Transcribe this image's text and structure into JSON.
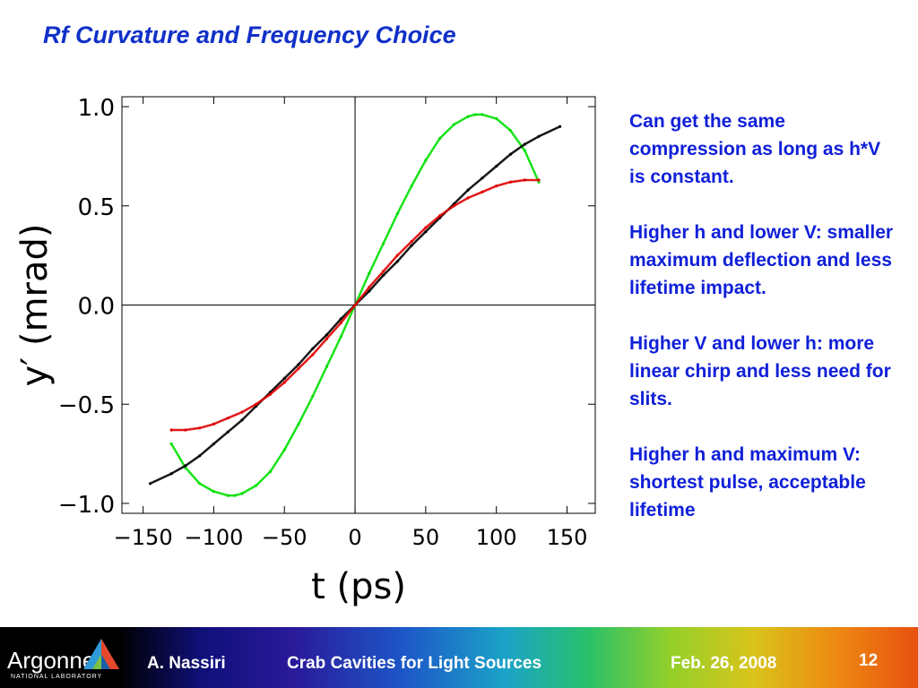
{
  "slide": {
    "title": "Rf Curvature and Frequency Choice",
    "notes": [
      "Can get the same compression as long as h*V is constant.",
      "Higher h and lower V: smaller maximum deflection and less lifetime impact.",
      "Higher V and lower h: more linear chirp and less need for slits.",
      "Higher h and maximum V: shortest pulse, acceptable lifetime"
    ]
  },
  "footer": {
    "logo_text": "Argonne",
    "logo_subtext": "NATIONAL LABORATORY",
    "author": "A. Nassiri",
    "talk_title": "Crab Cavities for Light Sources",
    "date": "Feb. 26, 2008",
    "page_number": "12",
    "logo_icon": "argonne-triangle-logo-icon"
  },
  "chart_data": {
    "type": "scatter",
    "title": "",
    "xlabel": "t (ps)",
    "ylabel": "y′ (mrad)",
    "xlim": [
      -165,
      170
    ],
    "ylim": [
      -1.05,
      1.05
    ],
    "xticks": [
      -150,
      -100,
      -50,
      0,
      50,
      100,
      150
    ],
    "xtick_labels": [
      "−150",
      "−100",
      "−50",
      "0",
      "50",
      "100",
      "150"
    ],
    "yticks": [
      1.0,
      0.5,
      0.0,
      -0.5,
      -1.0
    ],
    "ytick_labels": [
      "1.0",
      "0.5",
      "0.0",
      "−0.5",
      "−1.0"
    ],
    "grid": false,
    "legend": "none",
    "series": [
      {
        "color": "#00e000",
        "x": [
          -130,
          -120,
          -110,
          -100,
          -90,
          -85,
          -80,
          -70,
          -60,
          -50,
          -40,
          -30,
          -20,
          -10,
          0,
          10,
          20,
          30,
          40,
          50,
          60,
          70,
          80,
          85,
          90,
          100,
          110,
          120,
          130
        ],
        "y": [
          -0.7,
          -0.82,
          -0.9,
          -0.94,
          -0.96,
          -0.96,
          -0.95,
          -0.91,
          -0.84,
          -0.73,
          -0.6,
          -0.46,
          -0.31,
          -0.16,
          0.0,
          0.16,
          0.31,
          0.46,
          0.6,
          0.73,
          0.84,
          0.91,
          0.95,
          0.96,
          0.96,
          0.94,
          0.88,
          0.78,
          0.62
        ]
      },
      {
        "color": "#000000",
        "x": [
          -145,
          -130,
          -120,
          -110,
          -100,
          -90,
          -80,
          -70,
          -60,
          -50,
          -40,
          -30,
          -20,
          -10,
          0,
          10,
          20,
          30,
          40,
          50,
          60,
          70,
          80,
          90,
          100,
          110,
          120,
          130,
          145
        ],
        "y": [
          -0.9,
          -0.85,
          -0.81,
          -0.76,
          -0.7,
          -0.64,
          -0.58,
          -0.51,
          -0.44,
          -0.37,
          -0.3,
          -0.22,
          -0.15,
          -0.07,
          0.0,
          0.07,
          0.15,
          0.22,
          0.3,
          0.37,
          0.44,
          0.51,
          0.58,
          0.64,
          0.7,
          0.76,
          0.81,
          0.85,
          0.9
        ]
      },
      {
        "color": "#e00000",
        "x": [
          -130,
          -120,
          -110,
          -100,
          -90,
          -80,
          -70,
          -60,
          -50,
          -40,
          -30,
          -20,
          -10,
          0,
          10,
          20,
          30,
          40,
          50,
          60,
          70,
          80,
          90,
          100,
          110,
          120,
          130
        ],
        "y": [
          -0.63,
          -0.63,
          -0.62,
          -0.6,
          -0.57,
          -0.54,
          -0.5,
          -0.45,
          -0.39,
          -0.32,
          -0.25,
          -0.17,
          -0.09,
          0.0,
          0.09,
          0.17,
          0.25,
          0.32,
          0.39,
          0.45,
          0.5,
          0.54,
          0.57,
          0.6,
          0.62,
          0.63,
          0.63
        ]
      }
    ]
  }
}
